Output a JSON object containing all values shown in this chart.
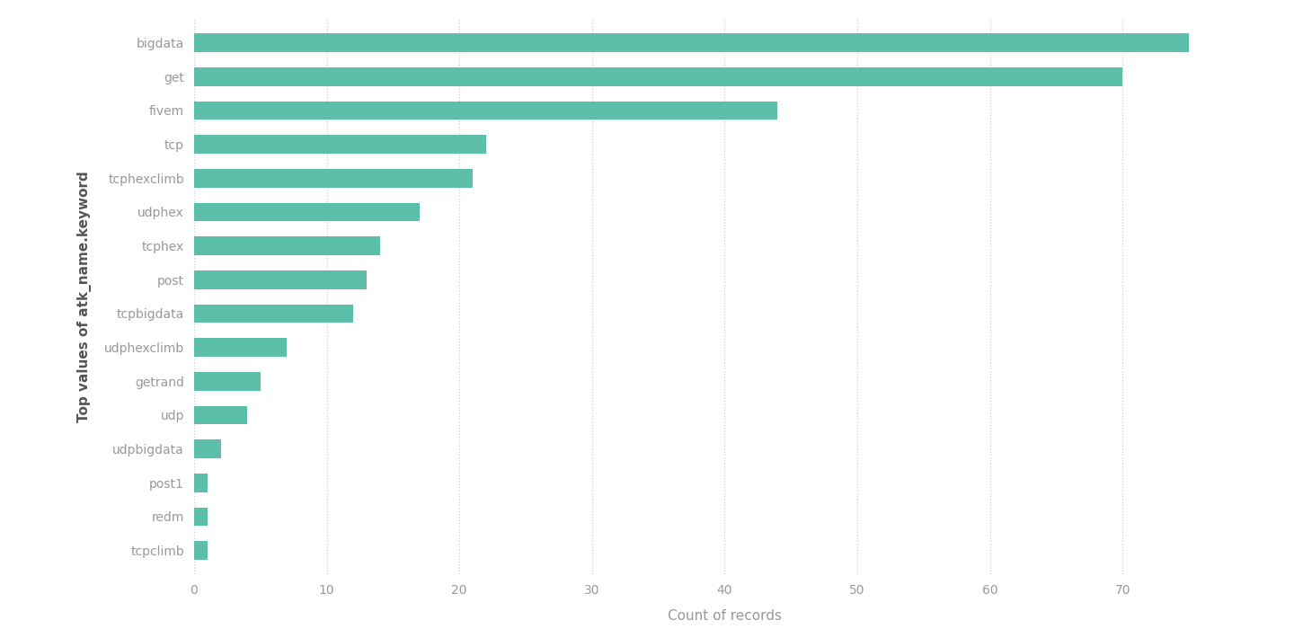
{
  "categories": [
    "bigdata",
    "get",
    "fivem",
    "tcp",
    "tcphexclimb",
    "udphex",
    "tcphex",
    "post",
    "tcpbigdata",
    "udphexclimb",
    "getrand",
    "udp",
    "udpbigdata",
    "post1",
    "redm",
    "tcpclimb"
  ],
  "values": [
    75,
    70,
    44,
    22,
    21,
    17,
    14,
    13,
    12,
    7,
    5,
    4,
    2,
    1,
    1,
    1
  ],
  "bar_color": "#5bbfaa",
  "background_color": "#ffffff",
  "xlabel": "Count of records",
  "ylabel": "Top values of atk_name.keyword",
  "xlim": [
    0,
    80
  ],
  "xticks": [
    0,
    10,
    20,
    30,
    40,
    50,
    60,
    70
  ],
  "bar_height": 0.55,
  "label_fontsize": 11,
  "tick_fontsize": 10,
  "grid_color": "#d0d0d0",
  "text_color": "#999999",
  "ylabel_color": "#555555"
}
